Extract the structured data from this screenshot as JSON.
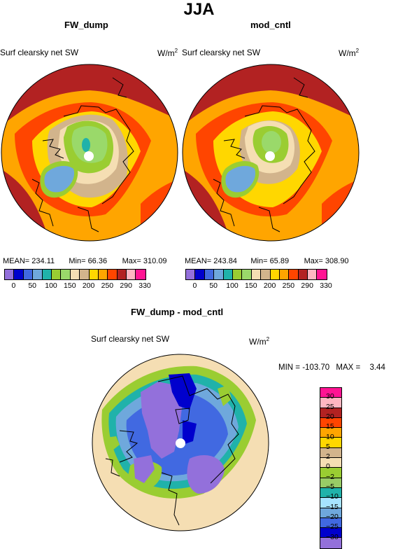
{
  "title": "JJA",
  "units_markup_base": "W/m",
  "units_markup_sup": "2",
  "panels": [
    {
      "title": "FW_dump",
      "var_label": "Surf clearsky net SW",
      "mean_label": "MEAN=",
      "mean": "234.11",
      "min_label": "Min=",
      "min": "66.36",
      "max_label": "Max=",
      "max": "310.09"
    },
    {
      "title": "mod_cntl",
      "var_label": "Surf clearsky net SW",
      "mean_label": "MEAN=",
      "mean": "243.84",
      "min_label": "Min=",
      "min": "65.89",
      "max_label": "Max=",
      "max": "308.90"
    }
  ],
  "diff_panel": {
    "title": "FW_dump - mod_cntl",
    "var_label": "Surf clearsky net SW",
    "min_label": "MIN =",
    "min": "-103.70",
    "max_label": "MAX =",
    "max": "3.44"
  },
  "abs_colorbar": {
    "colors": [
      "#9370db",
      "#0000cd",
      "#4169e1",
      "#6fa8dc",
      "#20b2aa",
      "#9acd32",
      "#9ad96a",
      "#f5deb3",
      "#d2b48c",
      "#ffd700",
      "#ffa500",
      "#ff4500",
      "#b22222",
      "#ffb6c1",
      "#ff1493"
    ],
    "ticks": [
      "0",
      "50",
      "100",
      "150",
      "200",
      "250",
      "290",
      "330"
    ]
  },
  "diff_colorbar": {
    "colors": [
      "#ff1493",
      "#ffb6c1",
      "#b22222",
      "#ff4500",
      "#ffa500",
      "#ffd700",
      "#d2b48c",
      "#f5deb3",
      "#9acd32",
      "#99cc66",
      "#20b2aa",
      "#a6e3ff",
      "#6fa8dc",
      "#4169e1",
      "#0000cd",
      "#9370db"
    ],
    "ticks": [
      "30",
      "25",
      "20",
      "15",
      "10",
      "5",
      "2",
      "0",
      "−2",
      "−5",
      "−10",
      "−15",
      "−20",
      "−25",
      "−30"
    ]
  }
}
